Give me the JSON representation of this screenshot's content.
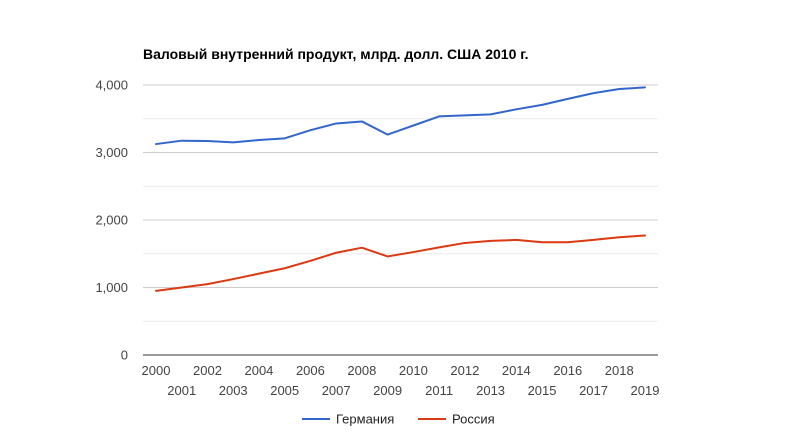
{
  "chart_data": {
    "type": "line",
    "title": "Валовый внутренний продукт, млрд. долл. США 2010 г.",
    "xlabel": "",
    "ylabel": "",
    "x": [
      "2000",
      "2001",
      "2002",
      "2003",
      "2004",
      "2005",
      "2006",
      "2007",
      "2008",
      "2009",
      "2010",
      "2011",
      "2012",
      "2013",
      "2014",
      "2015",
      "2016",
      "2017",
      "2018",
      "2019"
    ],
    "ylim": [
      0,
      4000
    ],
    "yticks": [
      0,
      1000,
      2000,
      3000,
      4000
    ],
    "ytick_labels": [
      "0",
      "1,000",
      "2,000",
      "3,000",
      "4,000"
    ],
    "grid": true,
    "legend_position": "bottom",
    "series": [
      {
        "name": "Германия",
        "color": "#3366cc",
        "values": [
          3125,
          3175,
          3170,
          3150,
          3185,
          3210,
          3330,
          3430,
          3460,
          3265,
          3400,
          3535,
          3550,
          3565,
          3640,
          3705,
          3795,
          3880,
          3940,
          3965
        ]
      },
      {
        "name": "Россия",
        "color": "#dc3912",
        "values": [
          950,
          1000,
          1050,
          1125,
          1205,
          1285,
          1395,
          1515,
          1590,
          1460,
          1525,
          1595,
          1660,
          1690,
          1705,
          1670,
          1670,
          1705,
          1745,
          1770
        ]
      }
    ]
  }
}
